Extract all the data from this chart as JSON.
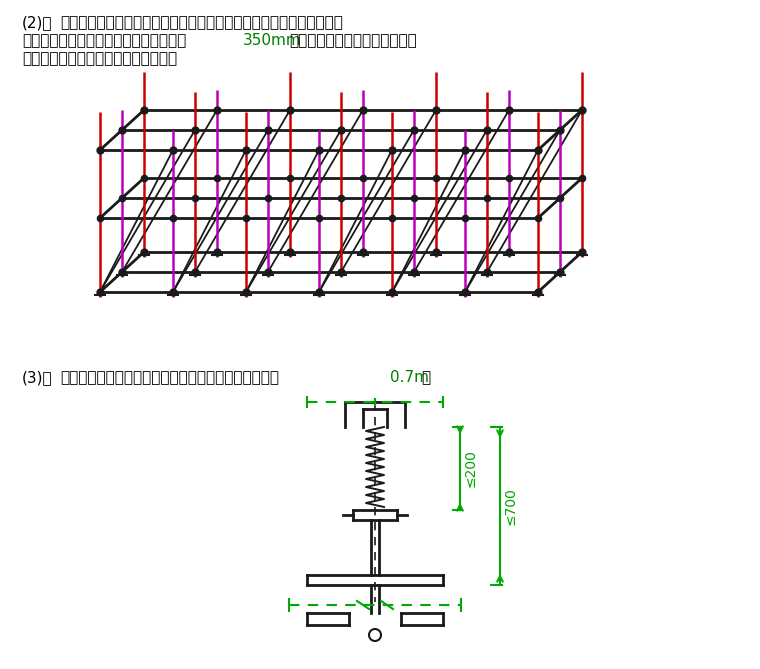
{
  "bg_color": "#ffffff",
  "text_color": "#000000",
  "green_color": "#00aa00",
  "red_color": "#cc0000",
  "magenta_color": "#bb00bb",
  "black_color": "#1a1a1a",
  "t2_label": "(3)、",
  "t2_main": "立柱上端包括可调螺杆伸出顶层水平杆的长度不得大于",
  "t2_val": "0.7m",
  "t2_end": "。"
}
